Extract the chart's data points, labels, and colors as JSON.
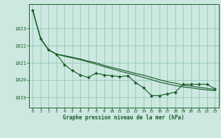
{
  "title": "Graphe pression niveau de la mer (hPa)",
  "background_color": "#cce8e0",
  "grid_color": "#99ccbb",
  "line_color": "#1a5c2a",
  "xlim": [
    -0.5,
    23.5
  ],
  "ylim": [
    1018.4,
    1024.4
  ],
  "yticks": [
    1019,
    1020,
    1021,
    1022,
    1023
  ],
  "xticks": [
    0,
    1,
    2,
    3,
    4,
    5,
    6,
    7,
    8,
    9,
    10,
    11,
    12,
    13,
    14,
    15,
    16,
    17,
    18,
    19,
    20,
    21,
    22,
    23
  ],
  "series_main": [
    1024.05,
    1022.4,
    1021.75,
    1021.5,
    1020.9,
    1020.55,
    1020.3,
    1020.15,
    1020.4,
    1020.3,
    1020.25,
    1020.2,
    1020.25,
    1019.85,
    1019.55,
    1019.1,
    1019.1,
    1019.2,
    1019.3,
    1019.75,
    1019.75,
    1019.75,
    1019.75,
    1019.5
  ],
  "series_line1": [
    1024.05,
    1022.4,
    1021.75,
    1021.5,
    1021.42,
    1021.32,
    1021.22,
    1021.1,
    1021.0,
    1020.85,
    1020.73,
    1020.62,
    1020.5,
    1020.38,
    1020.28,
    1020.15,
    1020.02,
    1019.9,
    1019.82,
    1019.7,
    1019.65,
    1019.58,
    1019.52,
    1019.45
  ],
  "series_line2": [
    1024.05,
    1022.4,
    1021.75,
    1021.5,
    1021.38,
    1021.28,
    1021.18,
    1021.05,
    1020.92,
    1020.78,
    1020.65,
    1020.52,
    1020.4,
    1020.28,
    1020.15,
    1020.02,
    1019.88,
    1019.78,
    1019.68,
    1019.6,
    1019.55,
    1019.48,
    1019.43,
    1019.38
  ]
}
